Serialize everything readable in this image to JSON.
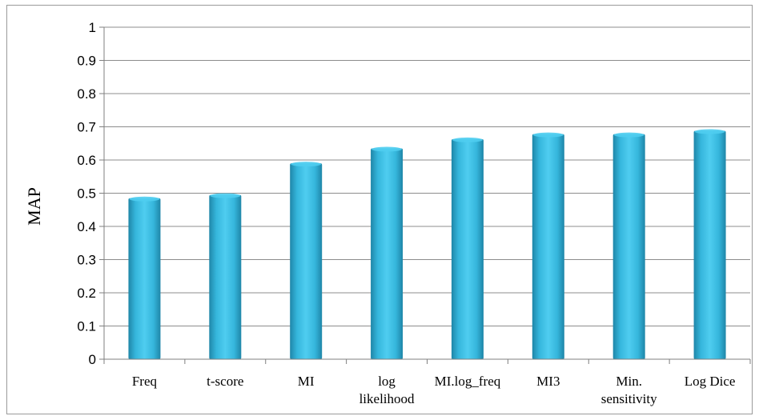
{
  "chart_data": {
    "type": "bar",
    "categories": [
      [
        "Freq"
      ],
      [
        "t-score"
      ],
      [
        "MI"
      ],
      [
        "log",
        "likelihood"
      ],
      [
        "MI.log_freq"
      ],
      [
        "MI3"
      ],
      [
        "Min.",
        "sensitivity"
      ],
      [
        "Log Dice"
      ]
    ],
    "values": [
      0.485,
      0.495,
      0.59,
      0.635,
      0.663,
      0.678,
      0.678,
      0.688
    ],
    "ylabel": "MAP",
    "ylim": [
      0,
      1
    ],
    "yticks": [
      "0",
      "0.1",
      "0.2",
      "0.3",
      "0.4",
      "0.5",
      "0.6",
      "0.7",
      "0.8",
      "0.9",
      "1"
    ],
    "grid": true,
    "colors": {
      "bar_light": "#4fcdf0",
      "bar_mid": "#35b6dc",
      "bar_dark": "#1f86a8",
      "grid": "#8c8c8c"
    }
  }
}
